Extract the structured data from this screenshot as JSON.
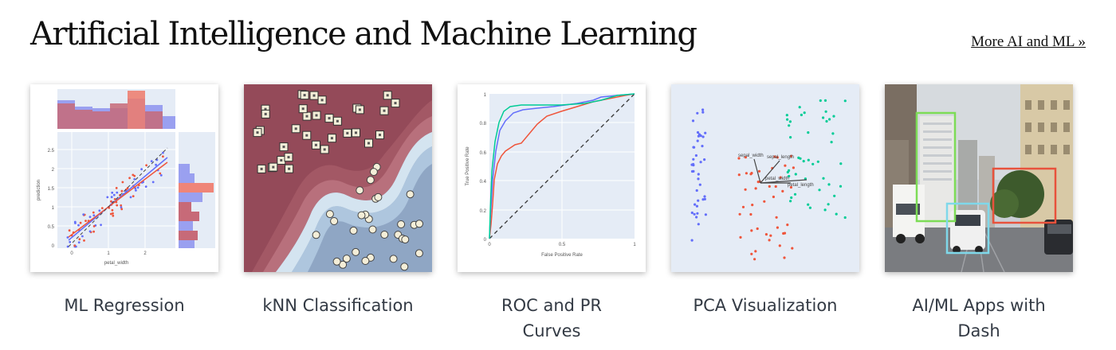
{
  "section": {
    "title": "Artificial Intelligence and Machine Learning",
    "more_link": "More AI and ML »"
  },
  "cards": [
    {
      "label": "ML Regression",
      "icon": "regression-thumbnail",
      "axes": {
        "x_label": "petal_width",
        "y_label": "prediction",
        "x_ticks": [
          "0",
          "1",
          "2"
        ],
        "y_ticks": [
          "0",
          "0.5",
          "1",
          "1.5",
          "2",
          "2.5"
        ]
      }
    },
    {
      "label": "kNN Classification",
      "icon": "knn-thumbnail"
    },
    {
      "label": "ROC and PR Curves",
      "icon": "roc-thumbnail",
      "axes": {
        "x_label": "False Positive Rate",
        "y_label": "True Positive Rate",
        "x_ticks": [
          "0",
          "0.5",
          "1"
        ],
        "y_ticks": [
          "0",
          "0.2",
          "0.4",
          "0.6",
          "0.8",
          "1"
        ]
      }
    },
    {
      "label": "PCA Visualization",
      "icon": "pca-thumbnail",
      "loadings": [
        "sepal_width",
        "sepal_length",
        "petal_width",
        "petal_length"
      ]
    },
    {
      "label": "AI/ML Apps with Dash",
      "icon": "object-detection-thumbnail"
    }
  ],
  "colors": {
    "blue": "#636efa",
    "red": "#ef553b",
    "green": "#00cc96",
    "plot_bg": "#e5ecf6",
    "heading": "#111111"
  }
}
